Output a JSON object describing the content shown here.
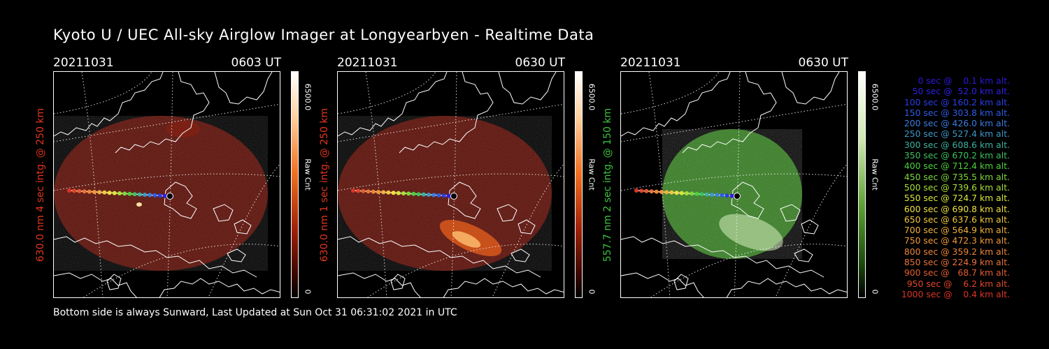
{
  "header": {
    "title": "Kyoto U / UEC All-sky Airglow Imager at Longyearbyen - Realtime Data"
  },
  "footer": {
    "text": "Bottom side is always Sunward, Last Updated at Sun Oct 31 06:31:02 2021 in UTC"
  },
  "panels": [
    {
      "date": "20211031",
      "time": "0603 UT",
      "side_label": "630.0 nm 4 sec intg. @ 250 km",
      "label_color": "#e0361c",
      "colorbar_max": "6500.0",
      "colorbar_min": "0",
      "colorbar_unit": "Raw Cnt",
      "colormap": "red"
    },
    {
      "date": "20211031",
      "time": "0630 UT",
      "side_label": "630.0 nm 1 sec intg. @ 250 km",
      "label_color": "#e0361c",
      "colorbar_max": "6500.0",
      "colorbar_min": "0",
      "colorbar_unit": "Raw Cnt",
      "colormap": "red"
    },
    {
      "date": "20211031",
      "time": "0630 UT",
      "side_label": "557.7 nm 2 sec intg. @ 150 km",
      "label_color": "#3cc43c",
      "colorbar_max": "6500.0",
      "colorbar_min": "0",
      "colorbar_unit": "Raw Cnt",
      "colormap": "green"
    }
  ],
  "legend": [
    {
      "text": "   0 sec @    0.1 km alt.",
      "color": "#2b18d8"
    },
    {
      "text": "  50 sec @  52.0 km alt.",
      "color": "#3020e0"
    },
    {
      "text": " 100 sec @ 160.2 km alt.",
      "color": "#2a3ee6"
    },
    {
      "text": " 150 sec @ 303.8 km alt.",
      "color": "#2d5ee8"
    },
    {
      "text": " 200 sec @ 426.0 km alt.",
      "color": "#3a7ee0"
    },
    {
      "text": " 250 sec @ 527.4 km alt.",
      "color": "#3c98c8"
    },
    {
      "text": " 300 sec @ 608.6 km alt.",
      "color": "#3cb0a0"
    },
    {
      "text": " 350 sec @ 670.2 km alt.",
      "color": "#3cc060"
    },
    {
      "text": " 400 sec @ 712.4 km alt.",
      "color": "#4cd03c"
    },
    {
      "text": " 450 sec @ 735.5 km alt.",
      "color": "#7cd83a"
    },
    {
      "text": " 500 sec @ 739.6 km alt.",
      "color": "#a8e03a"
    },
    {
      "text": " 550 sec @ 724.7 km alt.",
      "color": "#d8e83a"
    },
    {
      "text": " 600 sec @ 690.8 km alt.",
      "color": "#f0e040"
    },
    {
      "text": " 650 sec @ 637.6 km alt.",
      "color": "#f0c83c"
    },
    {
      "text": " 700 sec @ 564.9 km alt.",
      "color": "#f0b03c"
    },
    {
      "text": " 750 sec @ 472.3 km alt.",
      "color": "#f09a3a"
    },
    {
      "text": " 800 sec @ 359.2 km alt.",
      "color": "#ec8638"
    },
    {
      "text": " 850 sec @ 224.9 km alt.",
      "color": "#e87236"
    },
    {
      "text": " 900 sec @   68.7 km alt.",
      "color": "#e45c30"
    },
    {
      "text": " 950 sec @    6.2 km alt.",
      "color": "#e0482a"
    },
    {
      "text": "1000 sec @    0.4 km alt.",
      "color": "#dc3424"
    }
  ]
}
